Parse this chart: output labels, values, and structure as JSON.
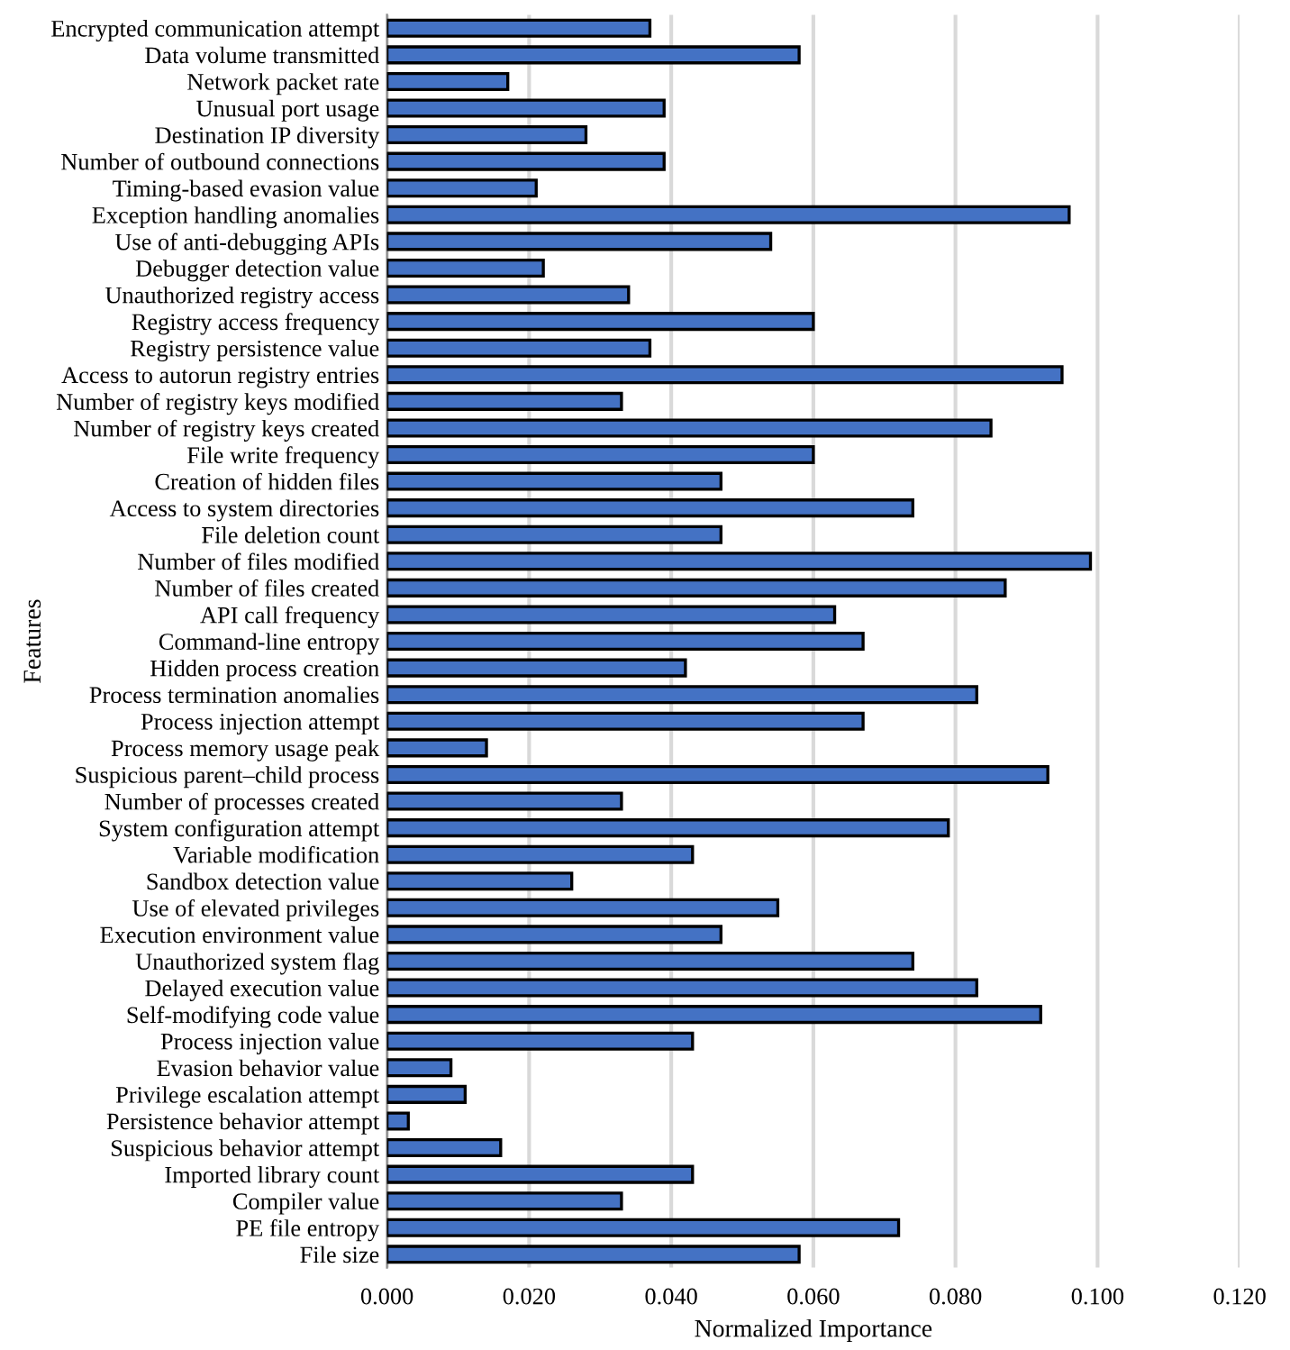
{
  "chart_data": {
    "type": "bar",
    "orientation": "horizontal",
    "xlabel": "Normalized Importance",
    "ylabel": "Features",
    "categories": [
      "Encrypted communication attempt",
      "Data volume transmitted",
      "Network packet rate",
      "Unusual port usage",
      "Destination IP diversity",
      "Number of outbound connections",
      "Timing-based evasion value",
      "Exception handling anomalies",
      "Use of anti-debugging APIs",
      "Debugger detection value",
      "Unauthorized registry access",
      "Registry access frequency",
      "Registry persistence value",
      "Access to autorun registry entries",
      "Number of registry keys modified",
      "Number of registry keys created",
      "File write frequency",
      "Creation of hidden files",
      "Access to system directories",
      "File deletion count",
      "Number of files modified",
      "Number of files created",
      "API call frequency",
      "Command-line entropy",
      "Hidden process creation",
      "Process termination anomalies",
      "Process injection attempt",
      "Process memory usage peak",
      "Suspicious parent–child process",
      "Number of processes created",
      "System configuration attempt",
      "Variable modification",
      "Sandbox detection value",
      "Use of elevated privileges",
      "Execution environment value",
      "Unauthorized system flag",
      "Delayed execution value",
      "Self-modifying code value",
      "Process injection value",
      "Evasion behavior value",
      "Privilege escalation attempt",
      "Persistence behavior attempt",
      "Suspicious behavior attempt",
      "Imported library count",
      "Compiler value",
      "PE file entropy",
      "File size"
    ],
    "values": [
      0.037,
      0.058,
      0.017,
      0.039,
      0.028,
      0.039,
      0.021,
      0.096,
      0.054,
      0.022,
      0.034,
      0.06,
      0.037,
      0.095,
      0.033,
      0.085,
      0.06,
      0.047,
      0.074,
      0.047,
      0.099,
      0.087,
      0.063,
      0.067,
      0.042,
      0.083,
      0.067,
      0.014,
      0.093,
      0.033,
      0.079,
      0.043,
      0.026,
      0.055,
      0.047,
      0.074,
      0.083,
      0.092,
      0.043,
      0.009,
      0.011,
      0.003,
      0.016,
      0.043,
      0.033,
      0.072,
      0.058
    ],
    "color": "#4472c4",
    "xlim": [
      0,
      0.12
    ],
    "xticks": [
      {
        "value": 0,
        "label": "0.000"
      },
      {
        "value": 0.02,
        "label": "0.020"
      },
      {
        "value": 0.04,
        "label": "0.040"
      },
      {
        "value": 0.06,
        "label": "0.060"
      },
      {
        "value": 0.08,
        "label": "0.080"
      },
      {
        "value": 0.1,
        "label": "0.100"
      },
      {
        "value": 0.12,
        "label": "0.120"
      }
    ],
    "grid": "x"
  }
}
